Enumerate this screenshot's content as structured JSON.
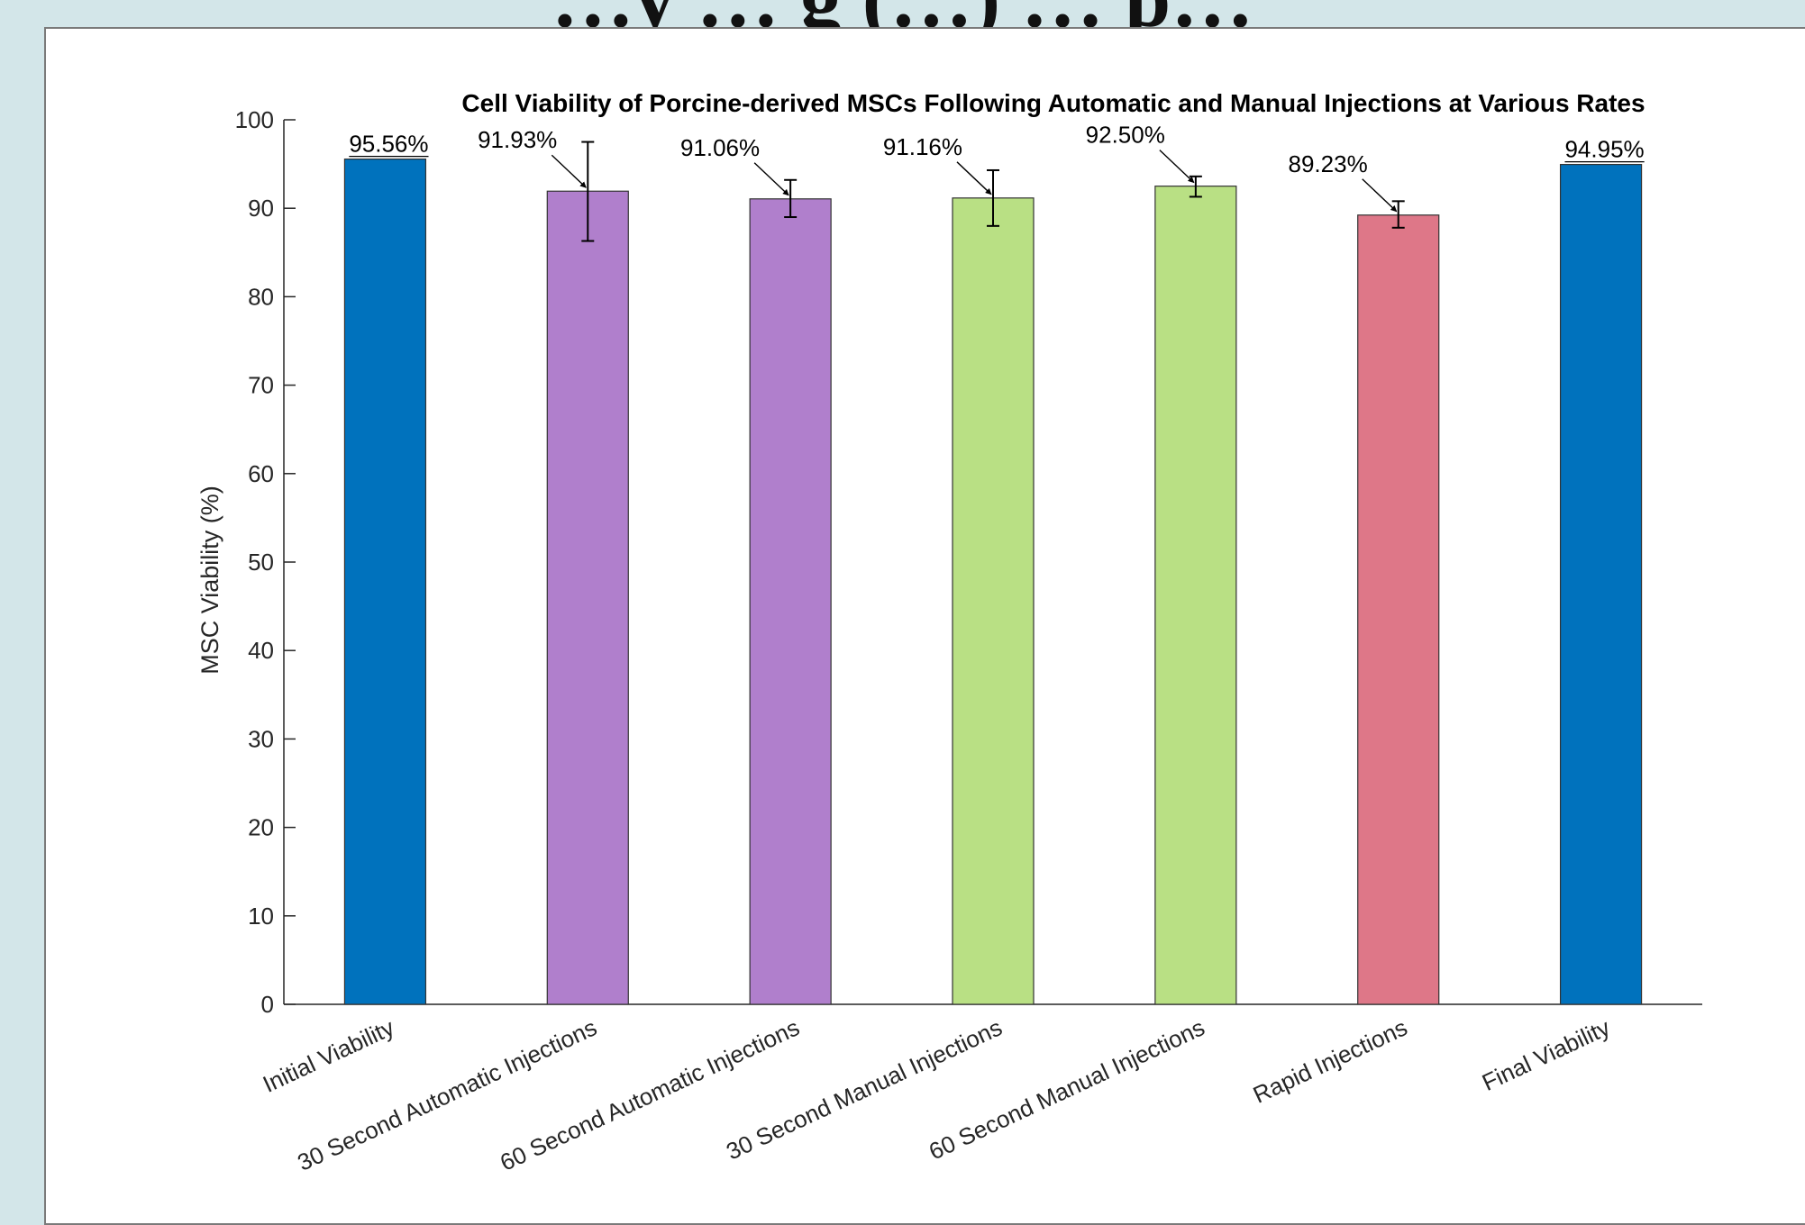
{
  "poster": {
    "heading": "…y … g (…) … p…"
  },
  "chart_data": {
    "type": "bar",
    "title": "Cell Viability of Porcine-derived MSCs Following Automatic and Manual Injections at Various Rates",
    "xlabel": "",
    "ylabel": "MSC Viability (%)",
    "ylim": [
      0,
      100
    ],
    "yticks": [
      0,
      10,
      20,
      30,
      40,
      50,
      60,
      70,
      80,
      90,
      100
    ],
    "grid": false,
    "categories": [
      "Initial Viability",
      "30 Second Automatic Injections",
      "60 Second Automatic Injections",
      "30 Second Manual Injections",
      "60 Second Manual Injections",
      "Rapid Injections",
      "Final Viability"
    ],
    "values": [
      95.56,
      91.93,
      91.06,
      91.16,
      92.5,
      89.23,
      94.95
    ],
    "error_low": [
      null,
      86.3,
      89.0,
      88.0,
      91.3,
      87.8,
      null
    ],
    "error_high": [
      null,
      97.5,
      93.2,
      94.3,
      93.6,
      90.8,
      null
    ],
    "value_labels": [
      "95.56%",
      "91.93%",
      "91.06%",
      "91.16%",
      "92.50%",
      "89.23%",
      "94.95%"
    ],
    "label_style": [
      "above",
      "arrow",
      "arrow",
      "arrow",
      "arrow",
      "arrow",
      "above"
    ],
    "bar_colors": [
      "#0072BD",
      "#B07FCC",
      "#B07FCC",
      "#B9E084",
      "#B9E084",
      "#DE7788",
      "#0072BD"
    ]
  }
}
